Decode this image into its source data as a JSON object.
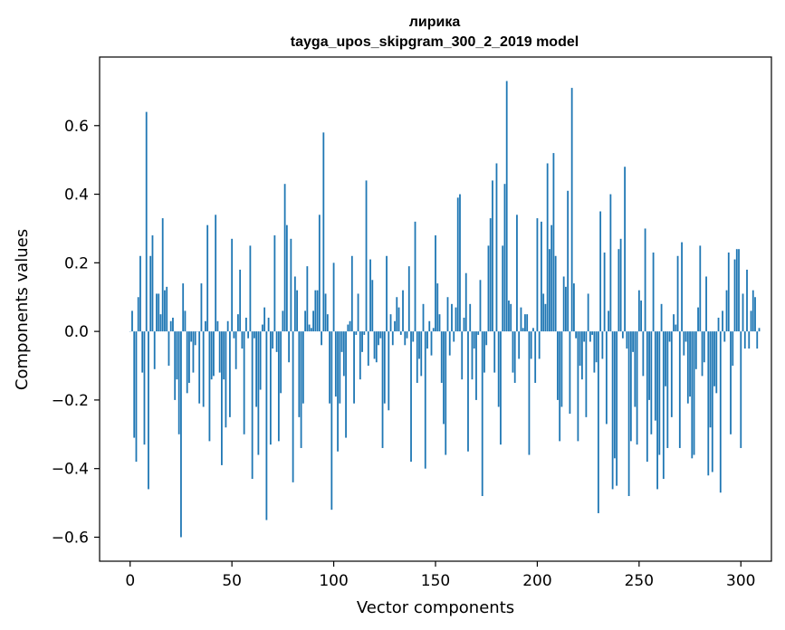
{
  "chart_data": {
    "type": "bar",
    "title_line1": "лирика",
    "title_line2": "tayga_upos_skipgram_300_2_2019 model",
    "xlabel": "Vector components",
    "ylabel": "Components values",
    "xlim": [
      -15,
      315
    ],
    "ylim": [
      -0.67,
      0.8
    ],
    "xticks": [
      0,
      50,
      100,
      150,
      200,
      250,
      300
    ],
    "xtick_labels": [
      "0",
      "50",
      "100",
      "150",
      "200",
      "250",
      "300"
    ],
    "yticks": [
      -0.6,
      -0.4,
      -0.2,
      0.0,
      0.2,
      0.4,
      0.6
    ],
    "ytick_labels": [
      "−0.6",
      "−0.4",
      "−0.2",
      "0.0",
      "0.2",
      "0.4",
      "0.6"
    ],
    "bar_color": "#1f77b4",
    "values": [
      0.0,
      0.06,
      -0.31,
      -0.38,
      0.1,
      0.22,
      -0.12,
      -0.33,
      0.64,
      -0.46,
      0.22,
      0.28,
      -0.11,
      0.11,
      0.11,
      0.05,
      0.33,
      0.12,
      0.13,
      -0.1,
      0.03,
      0.04,
      -0.2,
      -0.14,
      -0.3,
      -0.6,
      0.14,
      0.06,
      -0.18,
      -0.15,
      -0.03,
      -0.12,
      -0.04,
      0.0,
      -0.21,
      0.14,
      -0.22,
      0.03,
      0.31,
      -0.32,
      -0.14,
      -0.13,
      0.34,
      0.03,
      -0.12,
      -0.39,
      -0.14,
      -0.28,
      0.03,
      -0.25,
      0.27,
      -0.02,
      -0.11,
      0.05,
      0.18,
      -0.05,
      -0.3,
      0.04,
      -0.02,
      0.25,
      -0.43,
      -0.02,
      -0.22,
      -0.36,
      -0.17,
      0.02,
      0.07,
      -0.55,
      0.04,
      -0.33,
      -0.05,
      0.28,
      -0.06,
      -0.32,
      -0.18,
      0.06,
      0.43,
      0.31,
      -0.09,
      0.27,
      -0.44,
      0.16,
      0.12,
      -0.25,
      -0.34,
      -0.21,
      0.06,
      0.19,
      0.02,
      0.01,
      0.06,
      0.12,
      0.12,
      0.34,
      -0.04,
      0.58,
      0.11,
      0.05,
      -0.21,
      -0.52,
      0.2,
      -0.19,
      -0.35,
      -0.21,
      -0.06,
      -0.13,
      -0.31,
      0.02,
      0.03,
      0.22,
      -0.21,
      -0.01,
      0.11,
      -0.14,
      -0.06,
      -0.01,
      0.44,
      -0.1,
      0.21,
      0.15,
      -0.08,
      -0.09,
      -0.04,
      -0.02,
      -0.34,
      -0.21,
      0.22,
      -0.23,
      0.05,
      -0.04,
      0.03,
      0.1,
      0.07,
      -0.01,
      0.12,
      -0.04,
      -0.02,
      0.19,
      -0.38,
      -0.03,
      0.32,
      -0.15,
      -0.08,
      -0.13,
      0.08,
      -0.4,
      -0.05,
      0.03,
      -0.07,
      0.01,
      0.28,
      0.14,
      0.05,
      -0.15,
      -0.27,
      -0.36,
      0.1,
      -0.07,
      0.08,
      -0.03,
      0.07,
      0.39,
      0.4,
      -0.14,
      0.04,
      0.17,
      -0.35,
      0.08,
      -0.14,
      -0.05,
      -0.2,
      -0.01,
      0.15,
      -0.48,
      -0.12,
      -0.04,
      0.25,
      0.33,
      0.44,
      -0.12,
      0.49,
      -0.22,
      -0.33,
      0.25,
      0.43,
      0.73,
      0.09,
      0.08,
      -0.12,
      -0.15,
      0.34,
      -0.08,
      0.07,
      0.01,
      0.05,
      0.05,
      -0.36,
      -0.08,
      0.01,
      -0.15,
      0.33,
      -0.08,
      0.32,
      0.11,
      0.08,
      0.49,
      0.24,
      0.31,
      0.52,
      0.22,
      -0.2,
      -0.32,
      -0.22,
      0.16,
      0.13,
      0.41,
      -0.24,
      0.71,
      0.14,
      -0.02,
      -0.32,
      -0.1,
      -0.14,
      -0.03,
      -0.25,
      0.11,
      -0.03,
      -0.01,
      -0.12,
      -0.09,
      -0.53,
      0.35,
      -0.08,
      0.23,
      -0.27,
      0.06,
      0.4,
      -0.46,
      -0.37,
      -0.45,
      0.24,
      0.27,
      -0.02,
      0.48,
      -0.05,
      -0.48,
      -0.32,
      -0.06,
      -0.22,
      -0.33,
      0.12,
      0.09,
      -0.13,
      0.3,
      -0.38,
      -0.2,
      -0.3,
      0.23,
      -0.26,
      -0.46,
      -0.36,
      0.08,
      -0.43,
      -0.16,
      -0.34,
      -0.03,
      -0.25,
      0.05,
      0.02,
      0.22,
      -0.34,
      0.26,
      -0.07,
      -0.03,
      -0.21,
      -0.19,
      -0.37,
      -0.36,
      -0.11,
      0.07,
      0.25,
      -0.13,
      -0.09,
      0.16,
      -0.42,
      -0.28,
      -0.41,
      -0.16,
      -0.18,
      0.04,
      -0.47,
      0.06,
      -0.03,
      0.12,
      0.23,
      -0.3,
      -0.1,
      0.21,
      0.24,
      0.24,
      -0.34,
      0.11,
      -0.05,
      0.18,
      -0.05,
      0.06,
      0.12,
      0.1,
      -0.05,
      0.01
    ]
  }
}
